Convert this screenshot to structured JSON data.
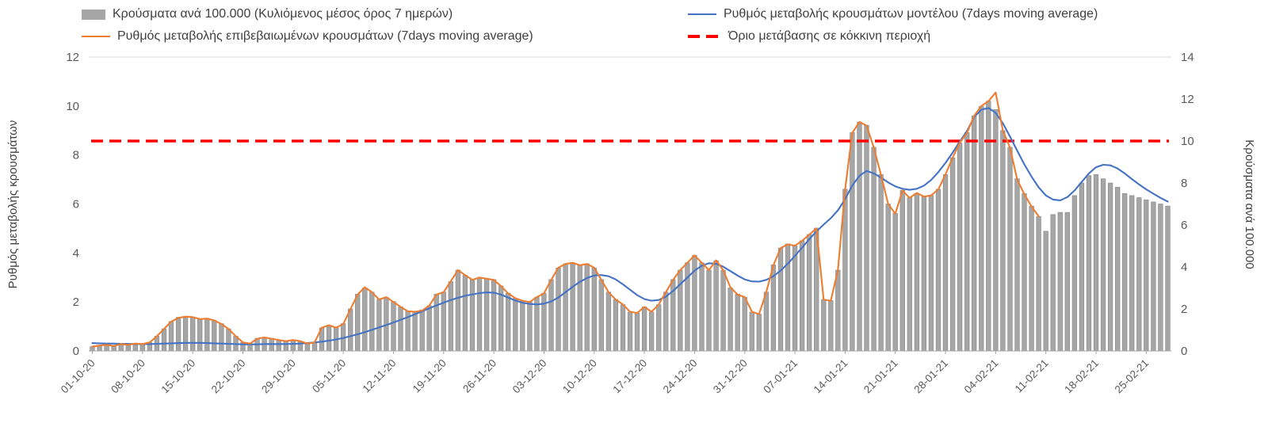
{
  "chart_data": {
    "type": "bar",
    "subtype": "combo-bar-and-lines-daily",
    "legend_position": "top",
    "grid": "off",
    "points_per_tick": 7,
    "x_tick_labels": [
      "01-10-20",
      "08-10-20",
      "15-10-20",
      "22-10-20",
      "29-10-20",
      "05-11-20",
      "12-11-20",
      "19-11-20",
      "26-11-20",
      "03-12-20",
      "10-12-20",
      "17-12-20",
      "24-12-20",
      "31-12-20",
      "07-01-21",
      "14-01-21",
      "21-01-21",
      "28-01-21",
      "04-02-21",
      "11-02-21",
      "18-02-21",
      "25-02-21"
    ],
    "left_axis": {
      "label": "Ρυθμός μεταβολής κρουσμάτων",
      "min": 0,
      "max": 12,
      "tick_step": 2,
      "tick_labels": [
        "0",
        "2",
        "4",
        "6",
        "8",
        "10",
        "12"
      ]
    },
    "right_axis": {
      "label": "Κρούσματα ανά 100.000",
      "min": 0,
      "max": 14,
      "tick_step": 2,
      "tick_labels": [
        "0",
        "2",
        "4",
        "6",
        "8",
        "10",
        "12",
        "14"
      ]
    },
    "bar_series": {
      "name": "Κρούσματα ανά 100.000 (Κυλιόμενος μέσος όρος 7 ημερών)",
      "axis": "right",
      "color": "#a6a6a6",
      "values": [
        0.2,
        0.25,
        0.3,
        0.25,
        0.3,
        0.3,
        0.35,
        0.35,
        0.4,
        0.7,
        1.05,
        1.4,
        1.6,
        1.65,
        1.6,
        1.5,
        1.55,
        1.45,
        1.3,
        1.05,
        0.7,
        0.4,
        0.35,
        0.6,
        0.65,
        0.6,
        0.5,
        0.45,
        0.5,
        0.45,
        0.35,
        0.4,
        1.1,
        1.2,
        1.1,
        1.3,
        2.0,
        2.7,
        3.0,
        2.8,
        2.45,
        2.55,
        2.35,
        2.1,
        1.9,
        1.85,
        1.95,
        2.15,
        2.7,
        2.8,
        3.3,
        3.85,
        3.6,
        3.4,
        3.5,
        3.45,
        3.4,
        3.1,
        2.75,
        2.5,
        2.4,
        2.35,
        2.55,
        2.75,
        3.4,
        3.95,
        4.15,
        4.2,
        4.1,
        4.15,
        3.95,
        3.4,
        2.8,
        2.45,
        2.2,
        1.85,
        1.8,
        2.1,
        1.85,
        2.2,
        2.8,
        3.4,
        3.85,
        4.2,
        4.55,
        4.2,
        3.85,
        4.3,
        3.85,
        3.0,
        2.7,
        2.55,
        1.85,
        1.75,
        2.8,
        4.1,
        4.9,
        5.1,
        5.0,
        5.25,
        5.55,
        5.85,
        2.45,
        2.4,
        3.85,
        7.7,
        10.4,
        10.9,
        10.75,
        9.7,
        8.4,
        7.0,
        6.55,
        7.65,
        7.3,
        7.5,
        7.35,
        7.4,
        7.7,
        8.4,
        9.2,
        9.9,
        10.4,
        11.2,
        11.65,
        11.9,
        11.5,
        10.5,
        9.7,
        8.2,
        7.5,
        6.9,
        6.4,
        5.7,
        6.5,
        6.6,
        6.6,
        7.4,
        8.0,
        8.35,
        8.4,
        8.2,
        8.0,
        7.8,
        7.5,
        7.4,
        7.3,
        7.2,
        7.1,
        7.0,
        6.9
      ]
    },
    "line_series": [
      {
        "name": "Ρυθμός μεταβολής κρουσμάτων μοντέλου (7days moving average)",
        "axis": "left",
        "color": "#4472c4",
        "values": [
          0.32,
          0.31,
          0.3,
          0.3,
          0.29,
          0.29,
          0.28,
          0.28,
          0.28,
          0.29,
          0.3,
          0.31,
          0.32,
          0.33,
          0.33,
          0.33,
          0.32,
          0.31,
          0.3,
          0.29,
          0.28,
          0.27,
          0.27,
          0.27,
          0.28,
          0.28,
          0.28,
          0.28,
          0.29,
          0.3,
          0.32,
          0.35,
          0.38,
          0.42,
          0.47,
          0.53,
          0.6,
          0.68,
          0.77,
          0.86,
          0.96,
          1.06,
          1.16,
          1.27,
          1.38,
          1.5,
          1.62,
          1.74,
          1.86,
          1.97,
          2.08,
          2.17,
          2.25,
          2.31,
          2.36,
          2.39,
          2.38,
          2.3,
          2.18,
          2.06,
          1.97,
          1.92,
          1.9,
          1.93,
          2.02,
          2.18,
          2.4,
          2.62,
          2.82,
          2.98,
          3.08,
          3.1,
          3.05,
          2.92,
          2.72,
          2.5,
          2.28,
          2.12,
          2.05,
          2.08,
          2.22,
          2.45,
          2.72,
          3.0,
          3.28,
          3.48,
          3.58,
          3.56,
          3.44,
          3.26,
          3.08,
          2.92,
          2.84,
          2.83,
          2.9,
          3.05,
          3.28,
          3.56,
          3.88,
          4.22,
          4.56,
          4.88,
          5.16,
          5.42,
          5.74,
          6.2,
          6.75,
          7.15,
          7.35,
          7.25,
          7.08,
          6.88,
          6.72,
          6.62,
          6.58,
          6.62,
          6.75,
          6.98,
          7.3,
          7.68,
          8.1,
          8.55,
          8.98,
          9.55,
          9.85,
          9.92,
          9.72,
          9.3,
          8.75,
          8.18,
          7.62,
          7.12,
          6.68,
          6.35,
          6.18,
          6.15,
          6.28,
          6.55,
          6.9,
          7.25,
          7.5,
          7.6,
          7.58,
          7.45,
          7.25,
          7.02,
          6.8,
          6.6,
          6.42,
          6.25,
          6.1
        ]
      },
      {
        "name": "Ρυθμός μεταβολής επιβεβαιωμένων κρουσμάτων (7days moving average)",
        "axis": "left",
        "color": "#ed7d31",
        "values": [
          0.18,
          0.22,
          0.25,
          0.2,
          0.28,
          0.25,
          0.3,
          0.28,
          0.35,
          0.6,
          0.9,
          1.2,
          1.35,
          1.4,
          1.38,
          1.3,
          1.32,
          1.25,
          1.1,
          0.9,
          0.6,
          0.35,
          0.3,
          0.5,
          0.55,
          0.5,
          0.45,
          0.4,
          0.45,
          0.4,
          0.3,
          0.35,
          0.95,
          1.05,
          0.95,
          1.1,
          1.7,
          2.3,
          2.6,
          2.4,
          2.1,
          2.2,
          2.0,
          1.8,
          1.62,
          1.6,
          1.65,
          1.85,
          2.3,
          2.4,
          2.85,
          3.3,
          3.1,
          2.9,
          3.0,
          2.95,
          2.9,
          2.65,
          2.35,
          2.15,
          2.05,
          2.0,
          2.2,
          2.35,
          2.9,
          3.4,
          3.55,
          3.6,
          3.5,
          3.55,
          3.4,
          2.9,
          2.4,
          2.1,
          1.9,
          1.6,
          1.55,
          1.8,
          1.6,
          1.9,
          2.4,
          2.9,
          3.3,
          3.6,
          3.9,
          3.6,
          3.3,
          3.7,
          3.3,
          2.6,
          2.3,
          2.2,
          1.6,
          1.5,
          2.4,
          3.5,
          4.2,
          4.35,
          4.3,
          4.5,
          4.75,
          5.0,
          2.1,
          2.05,
          3.3,
          6.6,
          8.9,
          9.35,
          9.2,
          8.3,
          7.2,
          6.0,
          5.6,
          6.55,
          6.25,
          6.45,
          6.3,
          6.35,
          6.6,
          7.2,
          7.9,
          8.5,
          8.9,
          9.6,
          10.0,
          10.2,
          10.55,
          9.0,
          8.3,
          7.0,
          6.4,
          5.9,
          5.5,
          null,
          null,
          null,
          null,
          null,
          null,
          null,
          null,
          null,
          null,
          null,
          null,
          null,
          null,
          null,
          null,
          null,
          null
        ]
      }
    ],
    "threshold": {
      "name": "Όριο μετάβασης σε κόκκινη περιοχή",
      "axis": "right",
      "value": 10,
      "color": "#ff0000",
      "style": "dashed"
    }
  }
}
